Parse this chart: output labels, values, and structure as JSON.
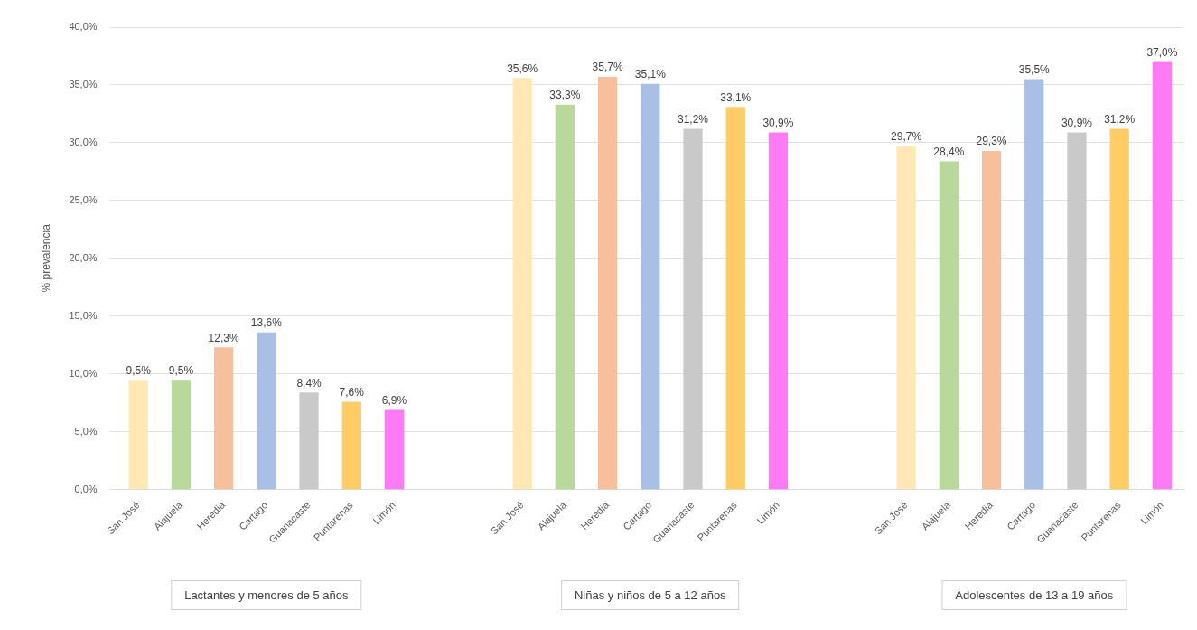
{
  "chart_data": {
    "type": "bar",
    "ylabel": "% prevalencia",
    "categories": [
      "San José",
      "Alajuela",
      "Heredia",
      "Cartago",
      "Guanacaste",
      "Puntarenas",
      "Limón",
      null,
      null,
      "San José",
      "Alajuela",
      "Heredia",
      "Cartago",
      "Guanacaste",
      "Puntarenas",
      "Limón",
      null,
      null,
      "San José",
      "Alajuela",
      "Heredia",
      "Cartago",
      "Guanacaste",
      "Puntarenas",
      "Limón"
    ],
    "values": [
      9.5,
      9.5,
      12.3,
      13.6,
      8.4,
      7.6,
      6.9,
      null,
      null,
      35.6,
      33.3,
      35.7,
      35.1,
      31.2,
      33.1,
      30.9,
      null,
      null,
      29.7,
      28.4,
      29.3,
      35.5,
      30.9,
      31.2,
      37.0
    ],
    "value_labels": [
      "9,5%",
      "9,5%",
      "12,3%",
      "13,6%",
      "8,4%",
      "7,6%",
      "6,9%",
      null,
      null,
      "35,6%",
      "33,3%",
      "35,7%",
      "35,1%",
      "31,2%",
      "33,1%",
      "30,9%",
      null,
      null,
      "29,7%",
      "28,4%",
      "29,3%",
      "35,5%",
      "30,9%",
      "31,2%",
      "37,0%"
    ],
    "colors": [
      "#ffe8b3",
      "#b8d89c",
      "#f6c09c",
      "#a9bfe6",
      "#c9c9c9",
      "#ffcc66",
      "#ff7bf5",
      null,
      null,
      "#ffe8b3",
      "#b8d89c",
      "#f6c09c",
      "#a9bfe6",
      "#c9c9c9",
      "#ffcc66",
      "#ff7bf5",
      null,
      null,
      "#ffe8b3",
      "#b8d89c",
      "#f6c09c",
      "#a9bfe6",
      "#c9c9c9",
      "#ffcc66",
      "#ff7bf5"
    ],
    "ylim": [
      0,
      40
    ],
    "yticks": [
      {
        "value": 0,
        "label": "0,0%"
      },
      {
        "value": 5,
        "label": "5,0%"
      },
      {
        "value": 10,
        "label": "10,0%"
      },
      {
        "value": 15,
        "label": "15,0%"
      },
      {
        "value": 20,
        "label": "20,0%"
      },
      {
        "value": 25,
        "label": "25,0%"
      },
      {
        "value": 30,
        "label": "30,0%"
      },
      {
        "value": 35,
        "label": "35,0%"
      },
      {
        "value": 40,
        "label": "40,0%"
      }
    ],
    "grid": "y",
    "legend": false,
    "annotations": [
      "Lactantes y menores de 5 años",
      "Niñas y niños de 5 a 12 años",
      "Adolescentes de 13 a 19 años"
    ]
  }
}
